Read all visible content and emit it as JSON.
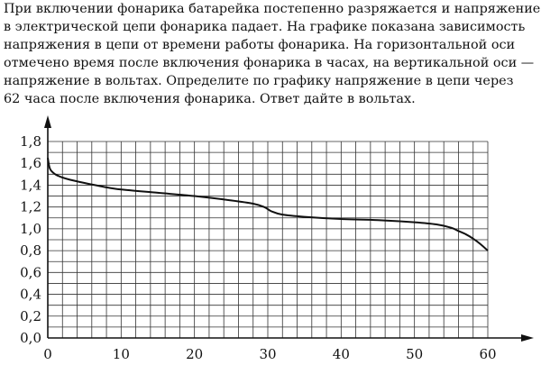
{
  "problem": {
    "lines": [
      "При включении фонарика батарейка постепенно разряжается и напряжение",
      "в электрической цепи фонарика падает. На графике показана зависимость",
      "напряжения в цепи от времени работы фонарика. На горизонтальной оси",
      "отмечено время после включения фонарика в часах, на вертикальной оси —",
      "напряжение в вольтах. Определите по графику напряжение в цепи через",
      "62 часа после включения фонарика. Ответ дайте в вольтах."
    ]
  },
  "chart_data": {
    "type": "line",
    "xlim": [
      0,
      60
    ],
    "ylim": [
      0,
      1.8
    ],
    "x_ticks": [
      "0",
      "10",
      "20",
      "30",
      "40",
      "50",
      "60"
    ],
    "y_ticks": [
      "0,0",
      "0,2",
      "0,4",
      "0,6",
      "0,8",
      "1,0",
      "1,2",
      "1,4",
      "1,6",
      "1,8"
    ],
    "grid": true,
    "grid_step_x": 2,
    "grid_step_y": 0.1,
    "series": [
      {
        "x": [
          0,
          0.3,
          1,
          2,
          3,
          5,
          8,
          10,
          15,
          20,
          25,
          28,
          29.5,
          30.5,
          32,
          35,
          40,
          45,
          50,
          53,
          55,
          56,
          57,
          58,
          59,
          60
        ],
        "y": [
          1.65,
          1.55,
          1.5,
          1.47,
          1.45,
          1.42,
          1.38,
          1.36,
          1.33,
          1.3,
          1.26,
          1.23,
          1.2,
          1.16,
          1.13,
          1.11,
          1.09,
          1.08,
          1.06,
          1.04,
          1.01,
          0.98,
          0.95,
          0.91,
          0.86,
          0.8
        ]
      }
    ]
  }
}
